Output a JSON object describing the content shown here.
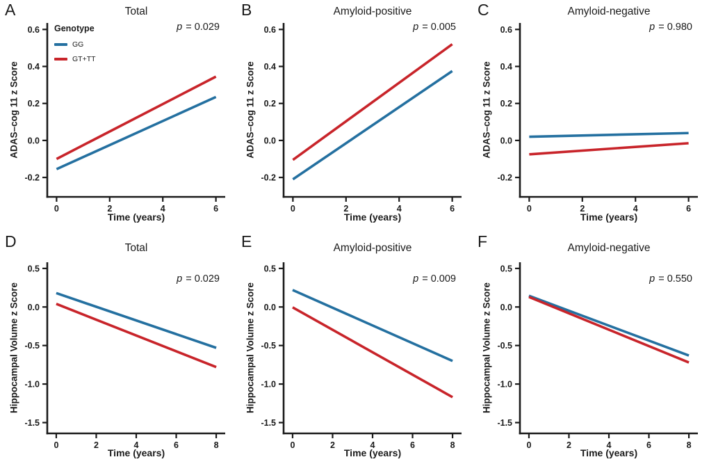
{
  "figure": {
    "background": "#ffffff",
    "text_color": "#1a1a1a",
    "axis_color": "#1a1a1a"
  },
  "legend": {
    "title": "Genotype",
    "position": "top-left of panel A",
    "items": [
      {
        "label": "GG",
        "color": "#2470A0"
      },
      {
        "label": "GT+TT",
        "color": "#C8242A"
      }
    ]
  },
  "chart_data": [
    {
      "type": "line",
      "panel_label": "A",
      "title": "Total",
      "p_symbol": "p",
      "p_text": " = 0.029",
      "xlabel": "Time (years)",
      "ylabel": "ADAS–cog 11 z Score",
      "x": [
        0,
        6
      ],
      "xlim": [
        -0.35,
        6.35
      ],
      "ylim": [
        -0.305,
        0.635
      ],
      "xticks": [
        {
          "v": 0,
          "label": "0"
        },
        {
          "v": 2,
          "label": "2"
        },
        {
          "v": 4,
          "label": "4"
        },
        {
          "v": 6,
          "label": "6"
        }
      ],
      "yticks": [
        {
          "v": 0.6,
          "label": "0.6"
        },
        {
          "v": 0.4,
          "label": "0.4"
        },
        {
          "v": 0.2,
          "label": "0.2"
        },
        {
          "v": 0.0,
          "label": "0.0"
        },
        {
          "v": -0.2,
          "label": "-0.2"
        }
      ],
      "series": [
        {
          "name": "GG",
          "color": "#2470A0",
          "values": [
            -0.155,
            0.235
          ]
        },
        {
          "name": "GT+TT",
          "color": "#C8242A",
          "values": [
            -0.1,
            0.345
          ]
        }
      ]
    },
    {
      "type": "line",
      "panel_label": "B",
      "title": "Amyloid-positive",
      "p_symbol": "p",
      "p_text": " = 0.005",
      "xlabel": "Time (years)",
      "ylabel": "ADAS–cog 11 z Score",
      "x": [
        0,
        6
      ],
      "xlim": [
        -0.35,
        6.35
      ],
      "ylim": [
        -0.305,
        0.635
      ],
      "xticks": [
        {
          "v": 0,
          "label": "0"
        },
        {
          "v": 2,
          "label": "2"
        },
        {
          "v": 4,
          "label": "4"
        },
        {
          "v": 6,
          "label": "6"
        }
      ],
      "yticks": [
        {
          "v": 0.6,
          "label": "0.6"
        },
        {
          "v": 0.4,
          "label": "0.4"
        },
        {
          "v": 0.2,
          "label": "0.2"
        },
        {
          "v": 0.0,
          "label": "0.0"
        },
        {
          "v": -0.2,
          "label": "-0.2"
        }
      ],
      "series": [
        {
          "name": "GG",
          "color": "#2470A0",
          "values": [
            -0.21,
            0.375
          ]
        },
        {
          "name": "GT+TT",
          "color": "#C8242A",
          "values": [
            -0.105,
            0.52
          ]
        }
      ]
    },
    {
      "type": "line",
      "panel_label": "C",
      "title": "Amyloid-negative",
      "p_symbol": "p",
      "p_text": " = 0.980",
      "xlabel": "Time (years)",
      "ylabel": "ADAS–cog 11 z Score",
      "x": [
        0,
        6
      ],
      "xlim": [
        -0.35,
        6.35
      ],
      "ylim": [
        -0.305,
        0.635
      ],
      "xticks": [
        {
          "v": 0,
          "label": "0"
        },
        {
          "v": 2,
          "label": "2"
        },
        {
          "v": 4,
          "label": "4"
        },
        {
          "v": 6,
          "label": "6"
        }
      ],
      "yticks": [
        {
          "v": 0.6,
          "label": "0.6"
        },
        {
          "v": 0.4,
          "label": "0.4"
        },
        {
          "v": 0.2,
          "label": "0.2"
        },
        {
          "v": 0.0,
          "label": "0.0"
        },
        {
          "v": -0.2,
          "label": "-0.2"
        }
      ],
      "series": [
        {
          "name": "GG",
          "color": "#2470A0",
          "values": [
            0.02,
            0.04
          ]
        },
        {
          "name": "GT+TT",
          "color": "#C8242A",
          "values": [
            -0.075,
            -0.015
          ]
        }
      ]
    },
    {
      "type": "line",
      "panel_label": "D",
      "title": "Total",
      "p_symbol": "p",
      "p_text": " = 0.029",
      "xlabel": "Time (years)",
      "ylabel": "Hippocampal Volume z Score",
      "x": [
        0,
        8
      ],
      "xlim": [
        -0.45,
        8.45
      ],
      "ylim": [
        -1.64,
        0.58
      ],
      "xticks": [
        {
          "v": 0,
          "label": "0"
        },
        {
          "v": 2,
          "label": "2"
        },
        {
          "v": 4,
          "label": "4"
        },
        {
          "v": 6,
          "label": "6"
        },
        {
          "v": 8,
          "label": "8"
        }
      ],
      "yticks": [
        {
          "v": 0.5,
          "label": "0.5"
        },
        {
          "v": 0.0,
          "label": "0.0"
        },
        {
          "v": -0.5,
          "label": "-0.5"
        },
        {
          "v": -1.0,
          "label": "-1.0"
        },
        {
          "v": -1.5,
          "label": "-1.5"
        }
      ],
      "series": [
        {
          "name": "GG",
          "color": "#2470A0",
          "values": [
            0.18,
            -0.53
          ]
        },
        {
          "name": "GT+TT",
          "color": "#C8242A",
          "values": [
            0.04,
            -0.78
          ]
        }
      ]
    },
    {
      "type": "line",
      "panel_label": "E",
      "title": "Amyloid-positive",
      "p_symbol": "p",
      "p_text": " = 0.009",
      "xlabel": "Time (years)",
      "ylabel": "Hippocampal Volume z Score",
      "x": [
        0,
        8
      ],
      "xlim": [
        -0.45,
        8.45
      ],
      "ylim": [
        -1.64,
        0.58
      ],
      "xticks": [
        {
          "v": 0,
          "label": "0"
        },
        {
          "v": 2,
          "label": "2"
        },
        {
          "v": 4,
          "label": "4"
        },
        {
          "v": 6,
          "label": "6"
        },
        {
          "v": 8,
          "label": "8"
        }
      ],
      "yticks": [
        {
          "v": 0.5,
          "label": "0.5"
        },
        {
          "v": 0.0,
          "label": "0.0"
        },
        {
          "v": -0.5,
          "label": "-0.5"
        },
        {
          "v": -1.0,
          "label": "-1.0"
        },
        {
          "v": -1.5,
          "label": "-1.5"
        }
      ],
      "series": [
        {
          "name": "GG",
          "color": "#2470A0",
          "values": [
            0.22,
            -0.7
          ]
        },
        {
          "name": "GT+TT",
          "color": "#C8242A",
          "values": [
            -0.005,
            -1.17
          ]
        }
      ]
    },
    {
      "type": "line",
      "panel_label": "F",
      "title": "Amyloid-negative",
      "p_symbol": "p",
      "p_text": " = 0.550",
      "xlabel": "Time (years)",
      "ylabel": "Hippocampal Volume z Score",
      "x": [
        0,
        8
      ],
      "xlim": [
        -0.45,
        8.45
      ],
      "ylim": [
        -1.64,
        0.58
      ],
      "xticks": [
        {
          "v": 0,
          "label": "0"
        },
        {
          "v": 2,
          "label": "2"
        },
        {
          "v": 4,
          "label": "4"
        },
        {
          "v": 6,
          "label": "6"
        },
        {
          "v": 8,
          "label": "8"
        }
      ],
      "yticks": [
        {
          "v": 0.5,
          "label": "0.5"
        },
        {
          "v": 0.0,
          "label": "0.0"
        },
        {
          "v": -0.5,
          "label": "-0.5"
        },
        {
          "v": -1.0,
          "label": "-1.0"
        },
        {
          "v": -1.5,
          "label": "-1.5"
        }
      ],
      "series": [
        {
          "name": "GG",
          "color": "#2470A0",
          "values": [
            0.145,
            -0.63
          ]
        },
        {
          "name": "GT+TT",
          "color": "#C8242A",
          "values": [
            0.13,
            -0.72
          ]
        }
      ]
    }
  ]
}
